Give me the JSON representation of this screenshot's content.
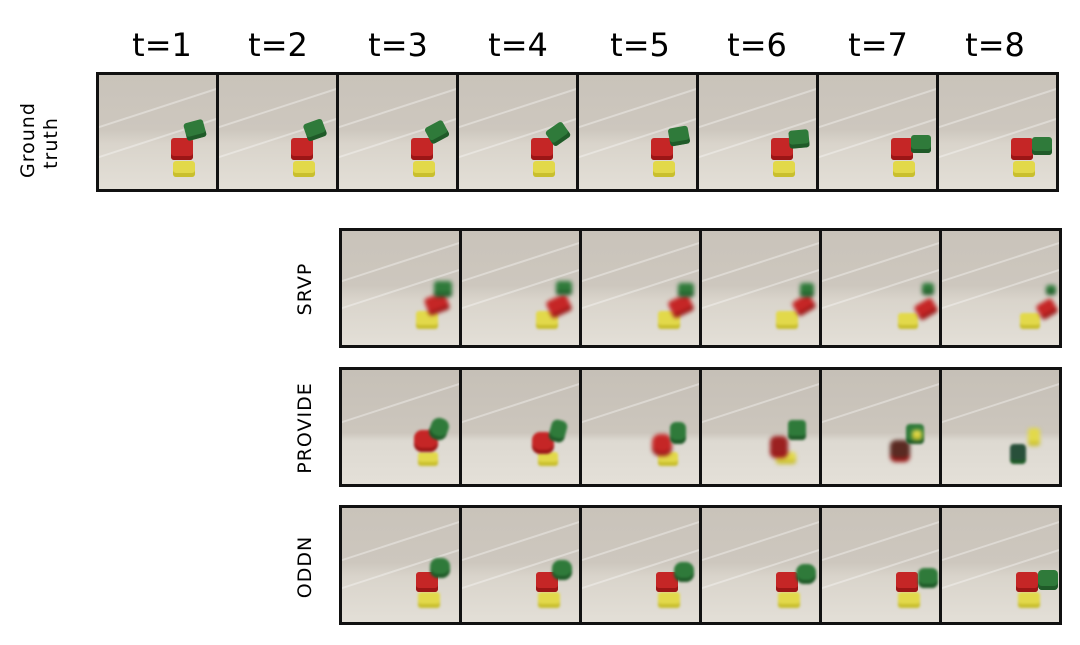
{
  "time_labels": [
    "t=1",
    "t=2",
    "t=3",
    "t=4",
    "t=5",
    "t=6",
    "t=7",
    "t=8"
  ],
  "rows": {
    "ground_truth": {
      "label": "Ground truth"
    },
    "srvp": {
      "label": "SRVP"
    },
    "provide": {
      "label": "PROVIDE"
    },
    "oddn": {
      "label": "ODDN"
    }
  },
  "colors": {
    "background_cloth": "#cdc7be",
    "yellow_block": "#e2d94a",
    "red_block": "#c52626",
    "green_block": "#2f7a3a"
  }
}
